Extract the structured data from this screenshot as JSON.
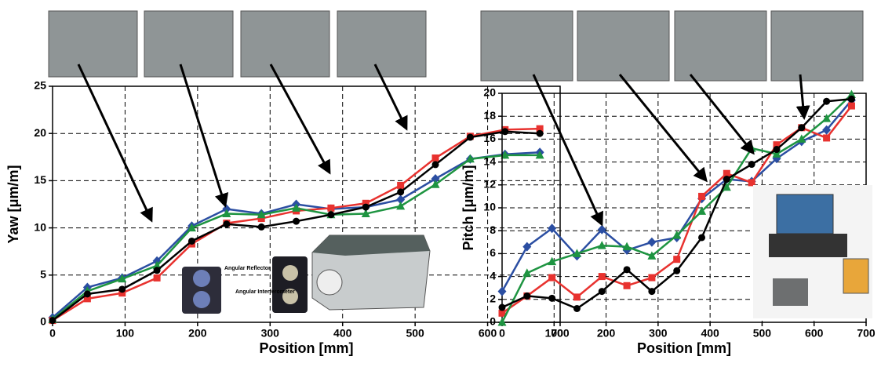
{
  "chart_data": [
    {
      "type": "line",
      "xlabel": "Position [mm]",
      "ylabel": "Yaw [μm/m]",
      "x": [
        0,
        48,
        96,
        144,
        192,
        240,
        288,
        336,
        384,
        432,
        480,
        528,
        576,
        624,
        672
      ],
      "series": [
        {
          "color": "#2b4ea2",
          "marker": "diamond",
          "values": [
            0.5,
            3.7,
            4.7,
            6.5,
            10.2,
            12.0,
            11.5,
            12.5,
            12.0,
            12.2,
            13.0,
            15.2,
            17.3,
            17.8,
            18.0
          ]
        },
        {
          "color": "#e8322f",
          "marker": "square",
          "values": [
            0.2,
            2.5,
            3.1,
            4.7,
            8.3,
            10.5,
            11.0,
            11.8,
            12.1,
            12.6,
            14.5,
            17.4,
            19.7,
            20.4,
            20.5
          ]
        },
        {
          "color": "#1e9441",
          "marker": "triangle",
          "values": [
            0.3,
            3.3,
            4.6,
            6.0,
            10.0,
            11.5,
            11.4,
            12.1,
            11.4,
            11.5,
            12.3,
            14.6,
            17.3,
            17.7,
            17.7
          ]
        },
        {
          "color": "#000000",
          "marker": "circle",
          "values": [
            0.2,
            3.0,
            3.5,
            5.5,
            8.6,
            10.4,
            10.1,
            10.7,
            11.4,
            12.2,
            13.8,
            16.7,
            19.6,
            20.2,
            20.0
          ]
        }
      ],
      "xlim": [
        0,
        700
      ],
      "xticks": [
        0,
        100,
        200,
        300,
        400,
        500,
        600,
        700
      ],
      "ylim": [
        0,
        25
      ],
      "yticks": [
        0,
        5,
        10,
        15,
        20,
        25
      ],
      "grid": true,
      "inset_labels": [
        "Angular Reflector",
        "Angular Interferometer"
      ]
    },
    {
      "type": "line",
      "xlabel": "Position [mm]",
      "ylabel": "Pitch [μm/m]",
      "x": [
        0,
        48,
        96,
        144,
        192,
        240,
        288,
        336,
        384,
        432,
        480,
        528,
        576,
        624,
        672
      ],
      "series": [
        {
          "color": "#2b4ea2",
          "marker": "diamond",
          "values": [
            2.7,
            6.6,
            8.2,
            5.8,
            8.1,
            6.3,
            7.0,
            7.4,
            10.8,
            12.5,
            12.3,
            14.3,
            15.8,
            16.8,
            19.4
          ]
        },
        {
          "color": "#e8322f",
          "marker": "square",
          "values": [
            0.8,
            2.3,
            3.9,
            2.2,
            4.0,
            3.2,
            3.9,
            5.5,
            11.0,
            13.0,
            12.2,
            15.5,
            17.0,
            16.1,
            18.9
          ]
        },
        {
          "color": "#1e9441",
          "marker": "triangle",
          "values": [
            0.0,
            4.3,
            5.3,
            6.0,
            6.7,
            6.6,
            5.8,
            7.6,
            9.7,
            11.8,
            15.2,
            14.7,
            16.0,
            17.8,
            19.9
          ]
        },
        {
          "color": "#000000",
          "marker": "circle",
          "values": [
            1.3,
            2.3,
            2.1,
            1.2,
            2.7,
            4.6,
            2.7,
            4.5,
            7.4,
            12.5,
            13.8,
            15.1,
            17.0,
            19.3,
            19.5
          ]
        }
      ],
      "xlim": [
        0,
        700
      ],
      "xticks": [
        0,
        100,
        200,
        300,
        400,
        500,
        600,
        700
      ],
      "ylim": [
        0,
        20
      ],
      "yticks": [
        0,
        2,
        4,
        6,
        8,
        10,
        12,
        14,
        16,
        18,
        20
      ],
      "grid": true
    }
  ]
}
